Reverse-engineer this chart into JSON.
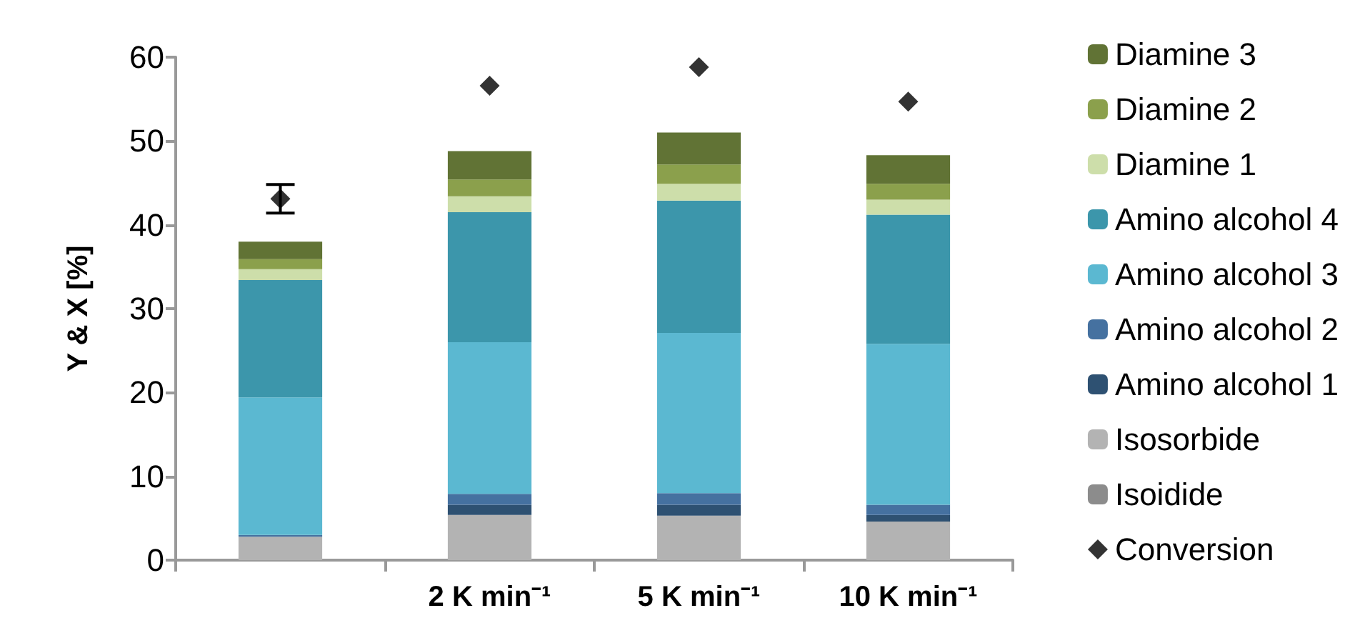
{
  "chart_data": {
    "type": "bar",
    "stacked": true,
    "ylabel": "Y & X [%]",
    "categories": [
      null,
      "2 K min⁻¹",
      "5 K min⁻¹",
      "10 K min⁻¹"
    ],
    "ylim": [
      0,
      60
    ],
    "yticks": [
      0,
      10,
      20,
      30,
      40,
      50,
      60
    ],
    "grid": false,
    "legend": "right",
    "series": [
      {
        "name": "Isoidide",
        "color": "#8c8c8c",
        "values": [
          0,
          0,
          0,
          0
        ]
      },
      {
        "name": "Isosorbide",
        "color": "#b3b3b3",
        "values": [
          2.8,
          5.4,
          5.3,
          4.6
        ]
      },
      {
        "name": "Amino alcohol 1",
        "color": "#2e5172",
        "values": [
          0,
          1.2,
          1.3,
          0.8
        ]
      },
      {
        "name": "Amino alcohol 2",
        "color": "#4571a0",
        "values": [
          0.2,
          1.3,
          1.4,
          1.2
        ]
      },
      {
        "name": "Amino alcohol 3",
        "color": "#5bb8d1",
        "values": [
          16.4,
          18.1,
          19.1,
          19.2
        ]
      },
      {
        "name": "Amino alcohol 4",
        "color": "#3c96ab",
        "values": [
          14.0,
          15.5,
          15.8,
          15.4
        ]
      },
      {
        "name": "Diamine 1",
        "color": "#cddeaa",
        "values": [
          1.3,
          1.9,
          2.0,
          1.8
        ]
      },
      {
        "name": "Diamine 2",
        "color": "#8ba04c",
        "values": [
          1.2,
          2.0,
          2.3,
          1.9
        ]
      },
      {
        "name": "Diamine 3",
        "color": "#617335",
        "values": [
          2.1,
          3.4,
          3.8,
          3.4
        ]
      },
      {
        "name": "Conversion",
        "type": "scatter",
        "marker": "diamond",
        "color": "#000000",
        "values": [
          43.1,
          56.6,
          58.8,
          54.7
        ],
        "errors": [
          1.7,
          null,
          null,
          null
        ]
      }
    ]
  }
}
